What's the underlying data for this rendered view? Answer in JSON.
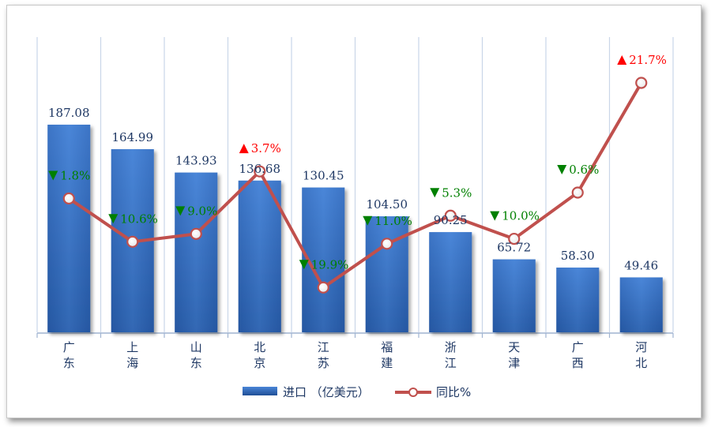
{
  "chart_data": {
    "type": "bar+line",
    "categories": [
      [
        "广",
        "东"
      ],
      [
        "上",
        "海"
      ],
      [
        "山",
        "东"
      ],
      [
        "北",
        "京"
      ],
      [
        "江",
        "苏"
      ],
      [
        "福",
        "建"
      ],
      [
        "浙",
        "江"
      ],
      [
        "天",
        "津"
      ],
      [
        "广",
        "西"
      ],
      [
        "河",
        "北"
      ]
    ],
    "series": [
      {
        "name": "进口 （亿美元）",
        "type": "bar",
        "values": [
          187.08,
          164.99,
          143.93,
          136.68,
          130.45,
          104.5,
          90.25,
          65.72,
          58.3,
          49.46
        ],
        "value_labels": [
          "187.08",
          "164.99",
          "143.93",
          "136.68",
          "130.45",
          "104.50",
          "90.25",
          "65.72",
          "58.30",
          "49.46"
        ],
        "color": "#3a72c4"
      },
      {
        "name": "同比%",
        "type": "line",
        "values": [
          -1.8,
          -10.6,
          -9.0,
          3.7,
          -19.9,
          -11.0,
          -5.3,
          -10.0,
          -0.6,
          21.7
        ],
        "value_labels": [
          "1.8%",
          "10.6%",
          "9.0%",
          "3.7%",
          "19.9%",
          "11.0%",
          "5.3%",
          "10.0%",
          "0.6%",
          "21.7%"
        ],
        "color": "#c0504d"
      }
    ],
    "bar_axis_range": [
      0,
      266
    ],
    "line_axis_range": [
      -29,
      31
    ],
    "down_color": "#008000",
    "up_color": "#ff0000",
    "grid": "vertical",
    "legend_position": "bottom"
  }
}
